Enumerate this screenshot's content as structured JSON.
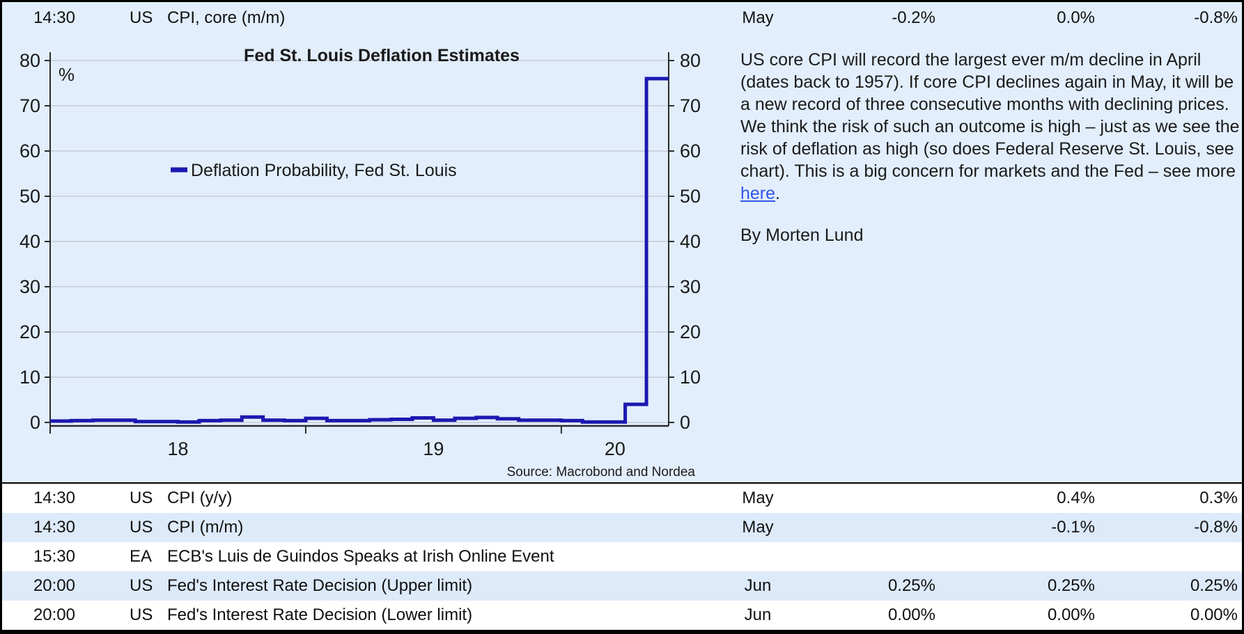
{
  "colors": {
    "page_bg": "#e2eefc",
    "row_alt_bg": "#ddeafa",
    "row_bg": "#ffffff",
    "line": "#1c18b0",
    "link": "#3355e6",
    "grid": "#c8ccd4",
    "axis": "#2b2b2b",
    "border": "#000000"
  },
  "calendar_header": {
    "time": "14:30",
    "region": "US",
    "event": "CPI, core (m/m)",
    "month": "May",
    "v1": "-0.2%",
    "v2": "0.0%",
    "v3": "-0.8%"
  },
  "chart_data": {
    "type": "line",
    "title": "Fed St. Louis Deflation Estimates",
    "unit_label": "%",
    "legend": "Deflation Probability, Fed St. Louis",
    "legend_position": "inside-left-upper",
    "source": "Source: Macrobond and Nordea",
    "grid": true,
    "y_ticks": [
      80,
      70,
      60,
      50,
      40,
      30,
      20,
      10,
      0
    ],
    "ylim": [
      0,
      80
    ],
    "x_tick_years": [
      2018,
      2019,
      2020
    ],
    "x_tick_labels": [
      "18",
      "19",
      "20"
    ],
    "xlim": [
      2018.0,
      2020.42
    ],
    "series": [
      {
        "name": "Deflation Probability, Fed St. Louis",
        "step": true,
        "x": [
          2018.0,
          2018.083,
          2018.167,
          2018.25,
          2018.333,
          2018.417,
          2018.5,
          2018.583,
          2018.667,
          2018.75,
          2018.833,
          2018.917,
          2019.0,
          2019.083,
          2019.167,
          2019.25,
          2019.333,
          2019.417,
          2019.5,
          2019.583,
          2019.667,
          2019.75,
          2019.833,
          2019.917,
          2020.0,
          2020.083,
          2020.167,
          2020.25,
          2020.333
        ],
        "y": [
          0.3,
          0.4,
          0.5,
          0.5,
          0.2,
          0.2,
          0.1,
          0.4,
          0.5,
          1.2,
          0.5,
          0.4,
          0.9,
          0.4,
          0.4,
          0.6,
          0.7,
          1.0,
          0.5,
          0.9,
          1.1,
          0.8,
          0.5,
          0.5,
          0.4,
          0.1,
          0.1,
          4.0,
          76.0
        ]
      }
    ]
  },
  "commentary": {
    "text_before_link": "US core CPI will record the largest ever m/m decline in April (dates back to 1957). If core CPI declines again in May, it will be a new record of three consecutive months with declining prices. We think the risk of such an outcome is high – just as we see the risk of deflation as high (so does Federal Reserve St. Louis, see chart). This is a big concern for markets and the Fed – see more ",
    "link_text": "here",
    "text_after_link": ".",
    "byline": "By Morten Lund"
  },
  "calendar_rows": [
    {
      "time": "14:30",
      "region": "US",
      "event": "CPI (y/y)",
      "month": "May",
      "v1": "",
      "v2": "0.4%",
      "v3": "0.3%"
    },
    {
      "time": "14:30",
      "region": "US",
      "event": "CPI (m/m)",
      "month": "May",
      "v1": "",
      "v2": "-0.1%",
      "v3": "-0.8%"
    },
    {
      "time": "15:30",
      "region": "EA",
      "event": "ECB's Luis de Guindos Speaks at Irish Online Event",
      "month": "",
      "v1": "",
      "v2": "",
      "v3": ""
    },
    {
      "time": "20:00",
      "region": "US",
      "event": "Fed's Interest Rate Decision (Upper limit)",
      "month": "Jun",
      "v1": "0.25%",
      "v2": "0.25%",
      "v3": "0.25%"
    },
    {
      "time": "20:00",
      "region": "US",
      "event": "Fed's Interest Rate Decision (Lower limit)",
      "month": "Jun",
      "v1": "0.00%",
      "v2": "0.00%",
      "v3": "0.00%"
    }
  ]
}
